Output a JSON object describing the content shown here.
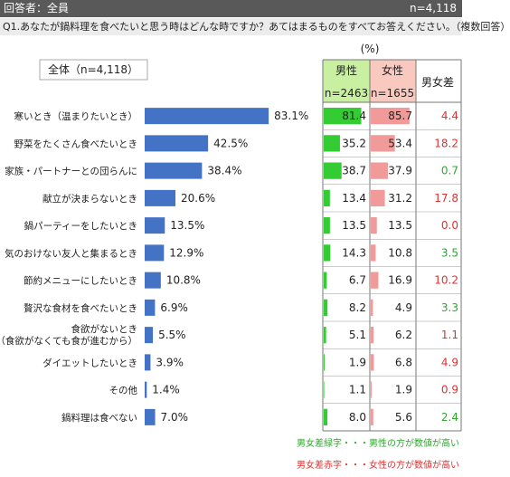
{
  "header": {
    "respondents": "回答者：全員",
    "n": "n=4,118"
  },
  "question": "Q1.あなたが鍋料理を食べたいと思う時はどんな時ですか？あてはまるものをすべてお答えください。（複数回答）",
  "unit_label": "(%)",
  "total_legend": "全体（n=4,118）",
  "columns": {
    "male": {
      "label": "男性",
      "n": "n=2463",
      "header_color": "#c9f0a0",
      "bar_color": "#33cc33"
    },
    "female": {
      "label": "女性",
      "n": "n=1655",
      "header_color": "#f9c9c0",
      "bar_color": "#f19a9a"
    },
    "diff": {
      "label": "男女差"
    }
  },
  "chart_data": {
    "type": "bar",
    "categories": [
      "寒いとき（温まりたいとき）",
      "野菜をたくさん食べたいとき",
      "家族・パートナーとの団らんに",
      "献立が決まらないとき",
      "鍋パーティーをしたいとき",
      "気のおけない友人と集まるとき",
      "節約メニューにしたいとき",
      "贅沢な食材を食べたいとき",
      "食欲がないとき\n（食欲がなくても食が進むから）",
      "ダイエットしたいとき",
      "その他",
      "鍋料理は食べない"
    ],
    "values": [
      83.1,
      42.5,
      38.4,
      20.6,
      13.5,
      12.9,
      10.8,
      6.9,
      5.5,
      3.9,
      1.4,
      7.0
    ],
    "value_labels": [
      "83.1%",
      "42.5%",
      "38.4%",
      "20.6%",
      "13.5%",
      "12.9%",
      "10.8%",
      "6.9%",
      "5.5%",
      "3.9%",
      "1.4%",
      "7.0%"
    ],
    "bar_color": "#4472c4",
    "male": [
      "81.4",
      "35.2",
      "38.7",
      "13.4",
      "13.5",
      "14.3",
      "6.7",
      "8.2",
      "5.1",
      "1.9",
      "1.1",
      "8.0"
    ],
    "female": [
      "85.7",
      "53.4",
      "37.9",
      "31.2",
      "13.5",
      "10.8",
      "16.9",
      "4.9",
      "6.2",
      "6.8",
      "1.9",
      "5.6"
    ],
    "diff": [
      "4.4",
      "18.2",
      "0.7",
      "17.8",
      "0.0",
      "3.5",
      "10.2",
      "3.3",
      "1.1",
      "4.9",
      "0.9",
      "2.4"
    ],
    "diff_colors": [
      "red",
      "red",
      "green",
      "red",
      "red",
      "green",
      "red",
      "green",
      "red",
      "red",
      "red",
      "green"
    ],
    "male_scale_max": 100,
    "female_scale_max": 100
  },
  "colors": {
    "green": "#2da82d",
    "red": "#e03030",
    "zero": "#e03030",
    "grid": "#9a9a9a"
  },
  "notes": {
    "green": "男女差緑字・・・男性の方が数値が高い",
    "red": "男女差赤字・・・女性の方が数値が高い"
  }
}
